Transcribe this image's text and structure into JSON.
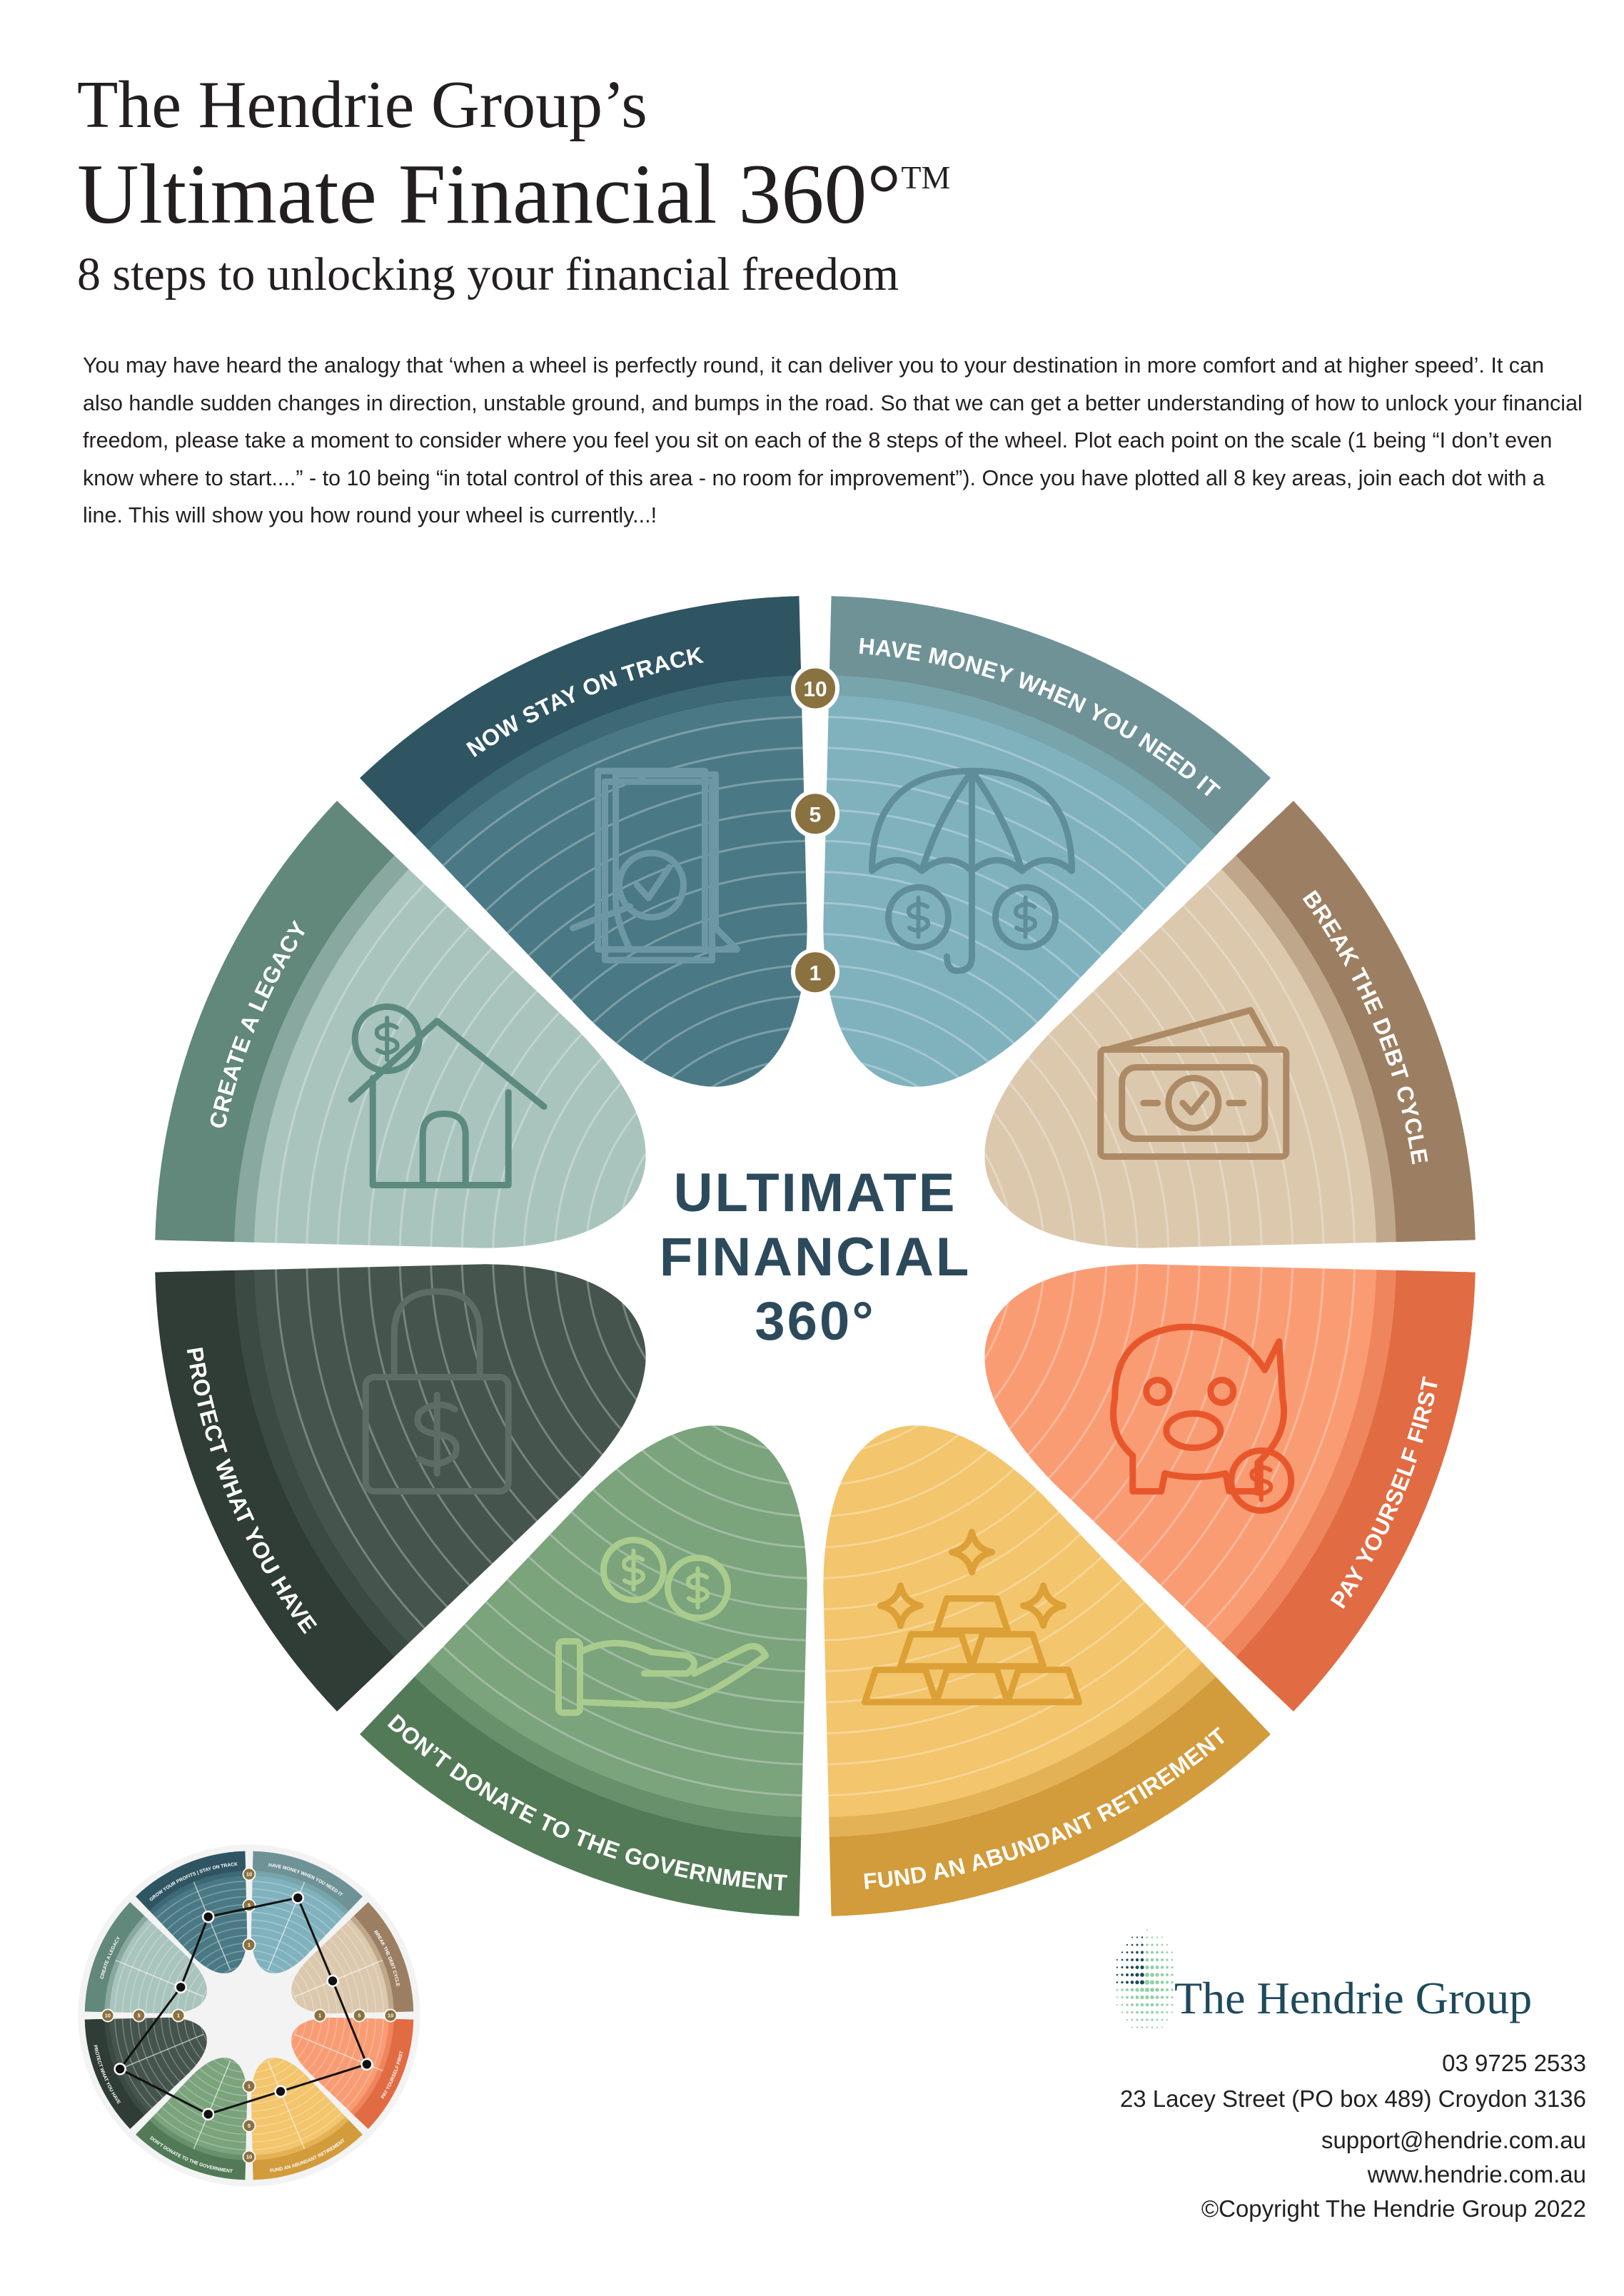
{
  "header": {
    "line1": "The Hendrie Group’s",
    "line2": "Ultimate Financial 360°",
    "trademark": "TM",
    "line3": "8 steps to unlocking your financial freedom"
  },
  "intro": "You may have heard the analogy that ‘when a wheel is perfectly round, it can deliver you to your destination in more comfort and at higher speed’. It can also handle sudden changes in direction, unstable ground, and bumps in the road. So that we can get a better understanding of how to unlock your financial freedom, please take a moment to consider where you feel you sit on each of the 8 steps of the wheel. Plot each point on the scale (1 being “I don’t even know where to start....” - to 10 being “in total control of this area - no room for improvement”). Once you have plotted all 8 key areas, join each dot with a line. This will show you how round your wheel is currently...!",
  "wheel": {
    "center_lines": [
      "ULTIMATE",
      "FINANCIAL",
      "360°"
    ],
    "center_color": "#2c4a5b",
    "scale_labels": [
      "10",
      "5",
      "1"
    ],
    "marker_color": "#8a7140",
    "segments": [
      {
        "label": "HAVE MONEY WHEN YOU NEED IT",
        "icon": "umbrella-coins-icon",
        "petal": "#80b2be",
        "band": "#6f9297",
        "ink": "#5f8e99"
      },
      {
        "label": "BREAK THE DEBT CYCLE",
        "icon": "cash-check-icon",
        "petal": "#dcc8ad",
        "band": "#9c7f62",
        "ink": "#ad8a66"
      },
      {
        "label": "PAY YOURSELF FIRST",
        "icon": "piggy-bank-icon",
        "petal": "#f99c74",
        "band": "#e16b43",
        "ink": "#e8572b"
      },
      {
        "label": "FUND AN ABUNDANT RETIREMENT",
        "icon": "gold-bars-icon",
        "petal": "#f3c56c",
        "band": "#d29b3b",
        "ink": "#dca036"
      },
      {
        "label": "DON’T DONATE TO THE GOVERNMENT",
        "icon": "hand-coins-icon",
        "petal": "#7ba37c",
        "band": "#537a57",
        "ink": "#a9cc8e"
      },
      {
        "label": "PROTECT WHAT YOU HAVE",
        "icon": "lock-dollar-icon",
        "petal": "#45544d",
        "band": "#2f3d36",
        "ink": "#5d6d66"
      },
      {
        "label": "CREATE A LEGACY",
        "icon": "house-coin-icon",
        "petal": "#a9c4bd",
        "band": "#62877b",
        "ink": "#5d8a7f"
      },
      {
        "label": "NOW STAY ON TRACK",
        "icon": "document-check-icon",
        "petal": "#4a7985",
        "band": "#2f5562",
        "ink": "#6d98a3"
      }
    ]
  },
  "example_wheel": {
    "labels": [
      "HAVE MONEY WHEN YOU NEED IT",
      "BREAK THE DEBT CYCLE",
      "PAY YOURSELF FIRST",
      "FUND AN ABUNDANT RETIREMENT",
      "DON’T DONATE TO THE GOVERNMENT",
      "PROTECT WHAT YOU HAVE",
      "CREATE A LEGACY",
      "GROW YOUR PROFITS | STAY ON TRACK"
    ],
    "plotted_values": [
      7.5,
      3,
      7.5,
      2,
      5,
      9,
      1,
      5
    ],
    "scale_labels": [
      "10",
      "5",
      "1"
    ]
  },
  "footer": {
    "logo_text": "The Hendrie Group",
    "phone": "03 9725 2533",
    "address": "23 Lacey Street (PO box 489) Croydon 3136",
    "email": "support@hendrie.com.au",
    "website": "www.hendrie.com.au",
    "copyright": "©Copyright The Hendrie Group 2022"
  }
}
